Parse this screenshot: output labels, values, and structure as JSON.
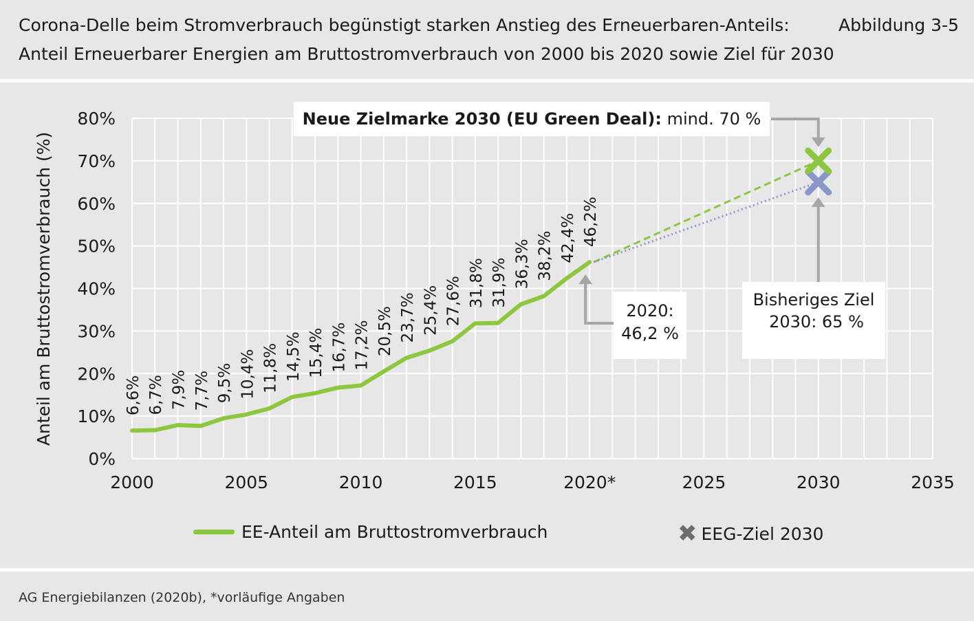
{
  "header": {
    "line1": "Corona-Delle beim Stromverbrauch begünstigt starken Anstieg des Erneuerbaren-Anteils:",
    "line2": "Anteil Erneuerbarer Energien am Bruttostromverbrauch von 2000 bis 2020 sowie Ziel für 2030",
    "figure_id": "Abbildung 3-5"
  },
  "footer": {
    "source": "AG Energiebilanzen (2020b), *vorläufige Angaben"
  },
  "colors": {
    "series": "#8dc63f",
    "old_target": "#8a97c9",
    "new_target": "#8dc63f",
    "arrow": "#a6a6a6",
    "grid": "#ffffff",
    "legend_marker": "#6d6d6d"
  },
  "legend": {
    "series_label": "EE-Anteil am Bruttostromverbrauch",
    "target_label": "EEG-Ziel 2030"
  },
  "annotations": {
    "new_target_bold": "Neue Zielmarke 2030 (EU Green Deal):",
    "new_target_rest": " mind. 70 %",
    "old_target_line1": "Bisheriges Ziel",
    "old_target_line2": "2030: 65 %",
    "current_line1": "2020:",
    "current_line2": "46,2 %"
  },
  "chart_data": {
    "type": "line",
    "ylabel": "Anteil am Bruttostromverbrauch (%)",
    "xlabel": "",
    "xlim": [
      2000,
      2035
    ],
    "ylim": [
      0,
      80
    ],
    "x_ticks": [
      "2000",
      "2005",
      "2010",
      "2015",
      "2020*",
      "2025",
      "2030",
      "2035"
    ],
    "y_ticks": [
      "0%",
      "10%",
      "20%",
      "30%",
      "40%",
      "50%",
      "60%",
      "70%",
      "80%"
    ],
    "grid": true,
    "legend_position": "bottom",
    "series": [
      {
        "name": "EE-Anteil am Bruttostromverbrauch",
        "x": [
          2000,
          2001,
          2002,
          2003,
          2004,
          2005,
          2006,
          2007,
          2008,
          2009,
          2010,
          2011,
          2012,
          2013,
          2014,
          2015,
          2016,
          2017,
          2018,
          2019,
          2020
        ],
        "values": [
          6.6,
          6.7,
          7.9,
          7.7,
          9.5,
          10.4,
          11.8,
          14.5,
          15.4,
          16.7,
          17.2,
          20.5,
          23.7,
          25.4,
          27.6,
          31.8,
          31.9,
          36.3,
          38.2,
          42.4,
          46.2
        ],
        "labels": [
          "6,6%",
          "6,7%",
          "7,9%",
          "7,7%",
          "9,5%",
          "10,4%",
          "11,8%",
          "14,5%",
          "15,4%",
          "16,7%",
          "17,2%",
          "20,5%",
          "23,7%",
          "25,4%",
          "27,6%",
          "31,8%",
          "31,9%",
          "36,3%",
          "38,2%",
          "42,4%",
          "46,2%"
        ]
      }
    ],
    "targets": [
      {
        "name": "EEG-Ziel 2030",
        "x": 2030,
        "value": 65,
        "kind": "old"
      },
      {
        "name": "EU Green Deal 2030",
        "x": 2030,
        "value": 70,
        "kind": "new"
      }
    ],
    "projections": [
      {
        "from": [
          2020,
          46.2
        ],
        "to": [
          2030,
          70
        ],
        "style": "dashed",
        "kind": "new"
      },
      {
        "from": [
          2020,
          46.2
        ],
        "to": [
          2030,
          65
        ],
        "style": "dotted",
        "kind": "old"
      }
    ]
  }
}
